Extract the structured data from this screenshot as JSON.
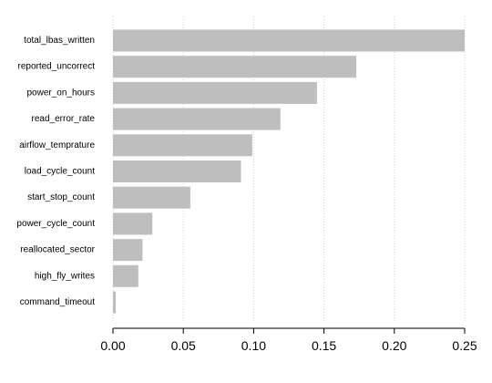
{
  "chart_data": {
    "type": "bar",
    "orientation": "horizontal",
    "categories": [
      "total_lbas_written",
      "reported_uncorrect",
      "power_on_hours",
      "read_error_rate",
      "airflow_temprature",
      "load_cycle_count",
      "start_stop_count",
      "power_cycle_count",
      "reallocated_sector",
      "high_fly_writes",
      "command_timeout"
    ],
    "values": [
      0.251,
      0.173,
      0.145,
      0.119,
      0.099,
      0.091,
      0.055,
      0.028,
      0.021,
      0.018,
      0.002
    ],
    "xlim": [
      0,
      0.25
    ],
    "xticks": [
      "0.00",
      "0.05",
      "0.10",
      "0.15",
      "0.20",
      "0.25"
    ],
    "grid": true,
    "title": "",
    "xlabel": "",
    "ylabel": "",
    "colors": {
      "bar": "#bebebe",
      "grid": "#d3d3d3",
      "axis": "#000000"
    }
  }
}
